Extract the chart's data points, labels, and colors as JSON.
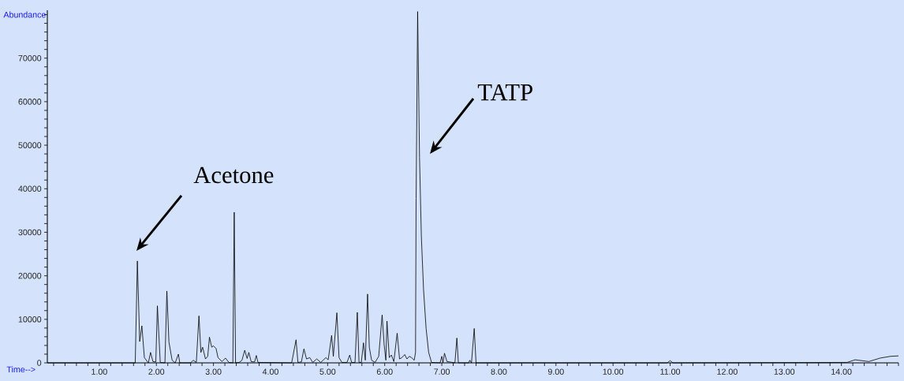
{
  "chart_data": {
    "type": "line",
    "xlabel": "Time-->",
    "ylabel": "Abundance",
    "color": "#000000",
    "xlim": [
      0.09,
      15.0
    ],
    "ylim": [
      0,
      81000
    ],
    "xticks": [
      {
        "value": 0.2,
        "label": null
      },
      {
        "value": 0.4,
        "label": null
      },
      {
        "value": 0.6,
        "label": null
      },
      {
        "value": 0.8,
        "label": null
      },
      {
        "value": 1,
        "label": "1.00"
      },
      {
        "value": 1.2,
        "label": null
      },
      {
        "value": 1.4,
        "label": null
      },
      {
        "value": 1.6,
        "label": null
      },
      {
        "value": 1.8,
        "label": null
      },
      {
        "value": 2,
        "label": "2.00"
      },
      {
        "value": 2.2,
        "label": null
      },
      {
        "value": 2.4,
        "label": null
      },
      {
        "value": 2.6,
        "label": null
      },
      {
        "value": 2.8,
        "label": null
      },
      {
        "value": 3,
        "label": "3.00"
      },
      {
        "value": 3.2,
        "label": null
      },
      {
        "value": 3.4,
        "label": null
      },
      {
        "value": 3.6,
        "label": null
      },
      {
        "value": 3.8,
        "label": null
      },
      {
        "value": 4,
        "label": "4.00"
      },
      {
        "value": 4.2,
        "label": null
      },
      {
        "value": 4.4,
        "label": null
      },
      {
        "value": 4.6,
        "label": null
      },
      {
        "value": 4.8,
        "label": null
      },
      {
        "value": 5,
        "label": "5.00"
      },
      {
        "value": 5.2,
        "label": null
      },
      {
        "value": 5.4,
        "label": null
      },
      {
        "value": 5.6,
        "label": null
      },
      {
        "value": 5.8,
        "label": null
      },
      {
        "value": 6,
        "label": "6.00"
      },
      {
        "value": 6.2,
        "label": null
      },
      {
        "value": 6.4,
        "label": null
      },
      {
        "value": 6.6,
        "label": null
      },
      {
        "value": 6.8,
        "label": null
      },
      {
        "value": 7,
        "label": "7.00"
      },
      {
        "value": 7.2,
        "label": null
      },
      {
        "value": 7.4,
        "label": null
      },
      {
        "value": 7.6,
        "label": null
      },
      {
        "value": 7.8,
        "label": null
      },
      {
        "value": 8,
        "label": "8.00"
      },
      {
        "value": 8.2,
        "label": null
      },
      {
        "value": 8.4,
        "label": null
      },
      {
        "value": 8.6,
        "label": null
      },
      {
        "value": 8.8,
        "label": null
      },
      {
        "value": 9,
        "label": "9.00"
      },
      {
        "value": 9.2,
        "label": null
      },
      {
        "value": 9.4,
        "label": null
      },
      {
        "value": 9.6,
        "label": null
      },
      {
        "value": 9.8,
        "label": null
      },
      {
        "value": 10,
        "label": "10.00"
      },
      {
        "value": 10.2,
        "label": null
      },
      {
        "value": 10.4,
        "label": null
      },
      {
        "value": 10.6,
        "label": null
      },
      {
        "value": 10.8,
        "label": null
      },
      {
        "value": 11,
        "label": "11.00"
      },
      {
        "value": 11.2,
        "label": null
      },
      {
        "value": 11.4,
        "label": null
      },
      {
        "value": 11.6,
        "label": null
      },
      {
        "value": 11.8,
        "label": null
      },
      {
        "value": 12,
        "label": "12.00"
      },
      {
        "value": 12.2,
        "label": null
      },
      {
        "value": 12.4,
        "label": null
      },
      {
        "value": 12.6,
        "label": null
      },
      {
        "value": 12.8,
        "label": null
      },
      {
        "value": 13,
        "label": "13.00"
      },
      {
        "value": 13.2,
        "label": null
      },
      {
        "value": 13.4,
        "label": null
      },
      {
        "value": 13.6,
        "label": null
      },
      {
        "value": 13.8,
        "label": null
      },
      {
        "value": 14,
        "label": "14.00"
      },
      {
        "value": 14.2,
        "label": null
      },
      {
        "value": 14.4,
        "label": null
      },
      {
        "value": 14.6,
        "label": null
      },
      {
        "value": 14.8,
        "label": null
      },
      {
        "value": 15,
        "label": null
      }
    ],
    "yticks": [
      0,
      {
        "value": 2000,
        "label": null
      },
      {
        "value": 4000,
        "label": null
      },
      {
        "value": 6000,
        "label": null
      },
      {
        "value": 8000,
        "label": null
      },
      10000,
      {
        "value": 12000,
        "label": null
      },
      {
        "value": 14000,
        "label": null
      },
      {
        "value": 16000,
        "label": null
      },
      {
        "value": 18000,
        "label": null
      },
      20000,
      {
        "value": 22000,
        "label": null
      },
      {
        "value": 24000,
        "label": null
      },
      {
        "value": 26000,
        "label": null
      },
      {
        "value": 28000,
        "label": null
      },
      30000,
      {
        "value": 32000,
        "label": null
      },
      {
        "value": 34000,
        "label": null
      },
      {
        "value": 36000,
        "label": null
      },
      {
        "value": 38000,
        "label": null
      },
      40000,
      {
        "value": 42000,
        "label": null
      },
      {
        "value": 44000,
        "label": null
      },
      {
        "value": 46000,
        "label": null
      },
      {
        "value": 48000,
        "label": null
      },
      50000,
      {
        "value": 52000,
        "label": null
      },
      {
        "value": 54000,
        "label": null
      },
      {
        "value": 56000,
        "label": null
      },
      {
        "value": 58000,
        "label": null
      },
      60000,
      {
        "value": 62000,
        "label": null
      },
      {
        "value": 64000,
        "label": null
      },
      {
        "value": 66000,
        "label": null
      },
      {
        "value": 68000,
        "label": null
      },
      70000,
      {
        "value": 72000,
        "label": null
      },
      {
        "value": 74000,
        "label": null
      },
      {
        "value": 76000,
        "label": null
      },
      {
        "value": 78000,
        "label": null
      },
      {
        "value": 80000,
        "label": null
      }
    ],
    "x": [
      0.09,
      1.63,
      1.667,
      1.708,
      1.746,
      1.79,
      1.86,
      1.898,
      1.94,
      1.99,
      2.018,
      2.068,
      2.15,
      2.184,
      2.22,
      2.276,
      2.33,
      2.386,
      2.41,
      2.6,
      2.645,
      2.7,
      2.746,
      2.78,
      2.81,
      2.86,
      2.9,
      2.93,
      2.97,
      3.0,
      3.046,
      3.08,
      3.15,
      3.21,
      3.27,
      3.34,
      3.364,
      3.387,
      3.45,
      3.5,
      3.548,
      3.59,
      3.62,
      3.66,
      3.72,
      3.751,
      3.78,
      4.37,
      4.447,
      4.48,
      4.54,
      4.585,
      4.63,
      4.687,
      4.74,
      4.81,
      4.88,
      4.97,
      5.01,
      5.07,
      5.1,
      5.162,
      5.2,
      5.25,
      5.34,
      5.387,
      5.42,
      5.48,
      5.52,
      5.55,
      5.59,
      5.628,
      5.66,
      5.7,
      5.73,
      5.77,
      5.83,
      5.895,
      5.955,
      5.99,
      6.02,
      6.04,
      6.08,
      6.116,
      6.16,
      6.218,
      6.26,
      6.3,
      6.35,
      6.39,
      6.43,
      6.47,
      6.517,
      6.54,
      6.55,
      6.577,
      6.61,
      6.642,
      6.68,
      6.725,
      6.77,
      6.82,
      6.97,
      7.0,
      7.02,
      7.047,
      7.09,
      7.23,
      7.264,
      7.29,
      7.47,
      7.49,
      7.52,
      7.568,
      7.6,
      10.95,
      11.0,
      11.05,
      14.1,
      14.24,
      14.48,
      14.68,
      14.86,
      15.0
    ],
    "values": [
      0,
      0,
      23400,
      4900,
      8500,
      1200,
      0,
      2400,
      300,
      200,
      13100,
      100,
      0,
      16500,
      4800,
      600,
      0,
      2000,
      0,
      0,
      600,
      100,
      10800,
      2400,
      3600,
      900,
      1500,
      5900,
      3600,
      3900,
      3300,
      1200,
      300,
      1100,
      100,
      0,
      34600,
      0,
      100,
      600,
      2900,
      1000,
      2400,
      300,
      200,
      1700,
      100,
      0,
      5300,
      100,
      200,
      3200,
      900,
      1200,
      100,
      900,
      100,
      1200,
      700,
      6300,
      1500,
      11500,
      1200,
      100,
      100,
      1800,
      100,
      100,
      11600,
      100,
      100,
      4600,
      600,
      15800,
      3600,
      600,
      100,
      1500,
      11000,
      4200,
      600,
      9600,
      1200,
      1800,
      300,
      6800,
      900,
      1200,
      1900,
      900,
      1500,
      1200,
      600,
      2400,
      37800,
      80700,
      47200,
      29000,
      16900,
      7900,
      2400,
      100,
      0,
      1500,
      0,
      2200,
      300,
      0,
      5700,
      0,
      0,
      600,
      0,
      7900,
      0,
      0,
      500,
      0,
      100,
      700,
      300,
      1100,
      1500,
      1600
    ],
    "annotations": [
      "Acetone",
      "TATP"
    ]
  }
}
